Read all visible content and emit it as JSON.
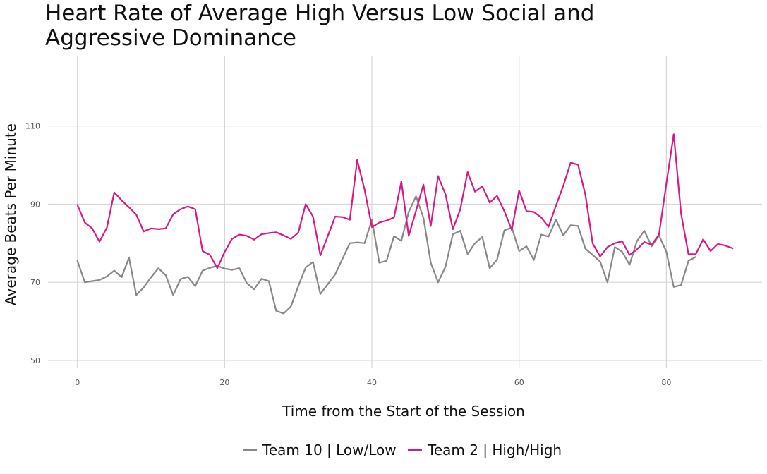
{
  "chart_data": {
    "type": "line",
    "title_lines": [
      "Heart Rate of Average High Versus Low Social and",
      "Aggressive Dominance"
    ],
    "xlabel": "Time from the Start of the Session",
    "ylabel": "Average Beats Per Minute",
    "xlim": [
      -4,
      93
    ],
    "ylim": [
      48,
      128
    ],
    "x_ticks": [
      0,
      20,
      40,
      60,
      80
    ],
    "y_ticks": [
      50,
      70,
      90,
      110
    ],
    "grid": true,
    "legend_position": "bottom",
    "x": [
      0,
      1,
      2,
      3,
      4,
      5,
      6,
      7,
      8,
      9,
      10,
      11,
      12,
      13,
      14,
      15,
      16,
      17,
      18,
      19,
      20,
      21,
      22,
      23,
      24,
      25,
      26,
      27,
      28,
      29,
      30,
      31,
      32,
      33,
      34,
      35,
      36,
      37,
      38,
      39,
      40,
      41,
      42,
      43,
      44,
      45,
      46,
      47,
      48,
      49,
      50,
      51,
      52,
      53,
      54,
      55,
      56,
      57,
      58,
      59,
      60,
      61,
      62,
      63,
      64,
      65,
      66,
      67,
      68,
      69,
      70,
      71,
      72,
      73,
      74,
      75,
      76,
      77,
      78,
      79,
      80,
      81,
      82,
      83,
      84,
      85,
      86,
      87,
      88,
      89
    ],
    "series": [
      {
        "name": "Team 10 | Low/Low",
        "color": "#888888",
        "values": [
          75.5,
          70,
          70.3,
          70.6,
          71.5,
          73,
          71.3,
          76.3,
          66.7,
          68.7,
          71.3,
          73.6,
          71.8,
          66.7,
          70.8,
          71.4,
          69,
          73,
          73.7,
          74.2,
          73.5,
          73.2,
          73.6,
          69.8,
          68.2,
          70.9,
          70.3,
          62.7,
          62,
          63.8,
          69,
          73.8,
          75.2,
          67,
          69.5,
          72,
          76,
          80,
          80.2,
          80,
          86,
          75,
          75.5,
          81.8,
          80.6,
          88,
          92,
          86.5,
          75,
          70,
          74,
          82.3,
          83.2,
          77.2,
          80,
          81.6,
          73.6,
          75.8,
          83.3,
          84,
          78,
          79.2,
          75.7,
          82.2,
          81.7,
          86,
          82,
          84.6,
          84.4,
          78.6,
          77,
          75.3,
          70,
          79,
          77.8,
          74.5,
          80.5,
          83.2,
          79.2,
          82,
          77.8,
          68.8,
          69.3,
          75.5,
          76.5,
          null,
          null,
          null,
          null,
          null
        ]
      },
      {
        "name": "Team 2 | High/High",
        "color": "#d81b84",
        "values": [
          89.8,
          85.3,
          83.8,
          80.4,
          84,
          93,
          91,
          89.2,
          87.3,
          83,
          83.8,
          83.6,
          83.8,
          87.4,
          88.7,
          89.4,
          88.7,
          78,
          77,
          73.6,
          77.8,
          81.1,
          82.2,
          81.9,
          80.9,
          82.3,
          82.6,
          82.8,
          82,
          81.1,
          82.7,
          90,
          86.8,
          76.9,
          81.8,
          86.8,
          86.7,
          86,
          101.3,
          93.8,
          84.1,
          85.3,
          85.8,
          86.6,
          95.8,
          81.9,
          88.3,
          95,
          84.4,
          97.2,
          92.5,
          83.6,
          88.6,
          98.2,
          93.2,
          94.6,
          90.4,
          92.1,
          88.2,
          83.4,
          93.5,
          88.2,
          88,
          86.6,
          84.2,
          89.6,
          94.7,
          100.6,
          100.1,
          92.4,
          79.9,
          76.6,
          79,
          80,
          80.5,
          77,
          78.4,
          80.3,
          79.6,
          82.2,
          95.3,
          107.9,
          87.6,
          77.2,
          77.2,
          81,
          78,
          79.8,
          79.4,
          78.7
        ]
      }
    ]
  }
}
